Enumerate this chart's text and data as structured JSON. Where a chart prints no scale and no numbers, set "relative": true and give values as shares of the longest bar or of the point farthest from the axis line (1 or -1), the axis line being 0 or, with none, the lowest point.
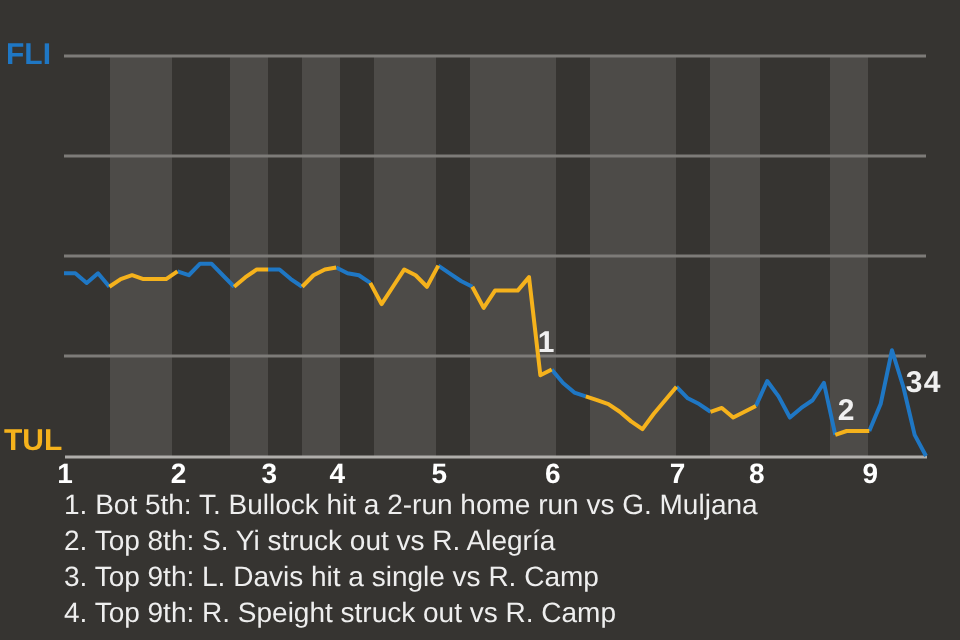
{
  "chart_data": {
    "type": "line",
    "relative": true,
    "categories": [
      "1",
      null,
      null,
      null,
      null,
      null,
      null,
      null,
      null,
      null,
      "2",
      null,
      null,
      null,
      null,
      null,
      null,
      null,
      "3",
      null,
      null,
      null,
      null,
      null,
      "4",
      null,
      null,
      null,
      null,
      null,
      null,
      null,
      null,
      "5",
      null,
      null,
      null,
      null,
      null,
      null,
      null,
      null,
      null,
      "6",
      null,
      null,
      null,
      null,
      null,
      null,
      null,
      null,
      null,
      null,
      "7",
      null,
      null,
      null,
      null,
      null,
      null,
      "8",
      null,
      null,
      null,
      null,
      null,
      null,
      null,
      null,
      null,
      "9",
      null,
      null,
      null,
      null,
      null
    ],
    "ref_lines": [
      {
        "axis": "y",
        "value": 0.52,
        "color": "#7d7b78"
      },
      {
        "axis": "y",
        "value": 1.04,
        "color": "#7d7b78"
      },
      {
        "axis": "y",
        "value": 1.56,
        "color": "#7d7b78"
      },
      {
        "axis": "y",
        "value": 2.08,
        "color": "#7d7b78"
      }
    ],
    "series": [
      {
        "color": "#1f77c4",
        "values": [
          0.95,
          0.95,
          0.9,
          0.95,
          0.88,
          null,
          null,
          null,
          null,
          null,
          0.96,
          0.94,
          1,
          1,
          0.94,
          0.88,
          null,
          null,
          0.97,
          0.97,
          0.92,
          0.88,
          null,
          null,
          0.98,
          0.95,
          0.94,
          0.9,
          null,
          null,
          null,
          null,
          null,
          0.99,
          0.95,
          0.91,
          0.88,
          null,
          null,
          null,
          null,
          null,
          null,
          0.45,
          0.38,
          0.33,
          0.31,
          null,
          null,
          null,
          null,
          null,
          null,
          null,
          0.36,
          0.3,
          0.27,
          0.23,
          null,
          null,
          null,
          0.26,
          0.39,
          0.31,
          0.2,
          0.25,
          0.29,
          0.38,
          0.11,
          null,
          null,
          0.13,
          0.27,
          0.55,
          0.36,
          0.11,
          0
        ]
      },
      {
        "color": "#f5b21c",
        "values": [
          null,
          null,
          null,
          null,
          0.88,
          0.92,
          0.94,
          0.92,
          0.92,
          0.92,
          0.96,
          null,
          null,
          null,
          null,
          0.88,
          0.93,
          0.97,
          0.97,
          null,
          null,
          0.88,
          0.94,
          0.97,
          0.98,
          null,
          null,
          0.9,
          0.79,
          0.88,
          0.97,
          0.94,
          0.88,
          0.99,
          null,
          null,
          0.88,
          0.77,
          0.86,
          0.86,
          0.86,
          0.93,
          0.42,
          0.45,
          null,
          null,
          0.31,
          0.29,
          0.27,
          0.23,
          0.18,
          0.14,
          0.22,
          0.29,
          0.36,
          null,
          null,
          0.23,
          0.25,
          0.2,
          0.23,
          0.26,
          null,
          null,
          null,
          null,
          null,
          null,
          0.11,
          0.13,
          0.13,
          0.13,
          null,
          null,
          null,
          null,
          null
        ]
      }
    ],
    "annotations": [
      "FLI",
      "TUL",
      "1",
      "2",
      "3",
      "4",
      "1. Bot 5th: T. Bullock hit a 2-run home run vs G. Muljana",
      "2. Top 8th: S. Yi struck out vs R. Alegría",
      "3. Top 9th: L. Davis hit a single vs R. Camp",
      "4. Top 9th: R. Speight struck out vs R. Camp"
    ]
  }
}
